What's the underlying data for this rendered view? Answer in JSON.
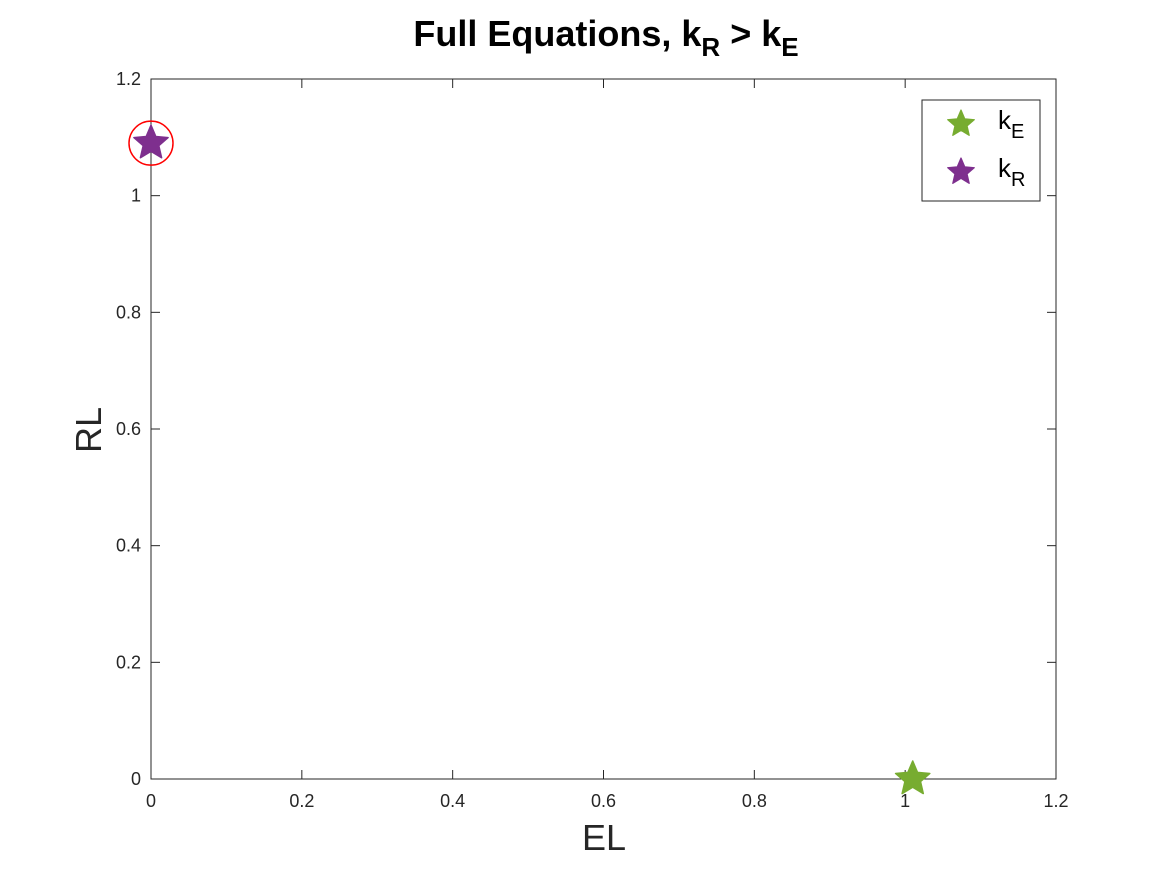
{
  "chart_data": {
    "type": "scatter",
    "title": {
      "main": "Full Equations, k",
      "sub1": "R",
      "mid": " > k",
      "sub2": "E"
    },
    "xlabel": "EL",
    "ylabel": "RL",
    "xlim": [
      0,
      1.2
    ],
    "ylim": [
      0,
      1.2
    ],
    "xticks": [
      0,
      0.2,
      0.4,
      0.6,
      0.8,
      1,
      1.2
    ],
    "yticks": [
      0,
      0.2,
      0.4,
      0.6,
      0.8,
      1,
      1.2
    ],
    "xtick_labels": [
      "0",
      "0.2",
      "0.4",
      "0.6",
      "0.8",
      "1",
      "1.2"
    ],
    "ytick_labels": [
      "0",
      "0.2",
      "0.4",
      "0.6",
      "0.8",
      "1",
      "1.2"
    ],
    "grid": false,
    "legend_position": "top-right",
    "series": [
      {
        "name": "k_E",
        "legend_base": "k",
        "legend_sub": "E",
        "color": "#77AC30",
        "marker": "pentagram",
        "points": [
          {
            "x": 1.01,
            "y": 0.0
          }
        ]
      },
      {
        "name": "k_R",
        "legend_base": "k",
        "legend_sub": "R",
        "color": "#7E2F8E",
        "marker": "pentagram",
        "points": [
          {
            "x": 0.0,
            "y": 1.09
          }
        ]
      }
    ],
    "highlight": {
      "marker": "circle",
      "color": "#FF0000",
      "x": 0.0,
      "y": 1.09
    }
  }
}
